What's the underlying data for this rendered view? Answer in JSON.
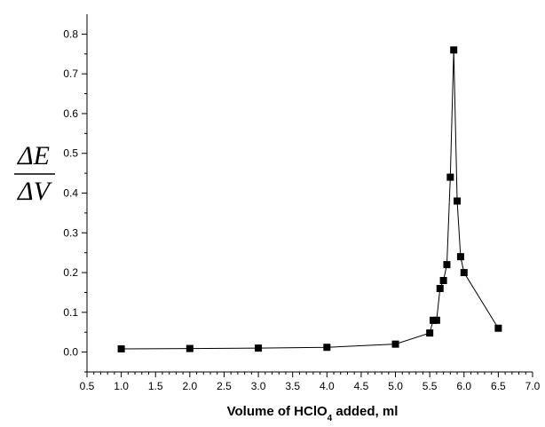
{
  "chart_data": {
    "type": "scatter",
    "title": "",
    "xlabel": {
      "prefix": "Volume of HClO",
      "subscript": "4",
      "suffix": " added, ml"
    },
    "ylabel": {
      "numerator": "ΔE",
      "denominator": "ΔV"
    },
    "xlim": [
      0.5,
      7.0
    ],
    "ylim": [
      -0.05,
      0.85
    ],
    "x_ticks": [
      "0.5",
      "1.0",
      "1.5",
      "2.0",
      "2.5",
      "3.0",
      "3.5",
      "4.0",
      "4.5",
      "5.0",
      "5.5",
      "6.0",
      "6.5",
      "7.0"
    ],
    "y_ticks": [
      "0.0",
      "0.1",
      "0.2",
      "0.3",
      "0.4",
      "0.5",
      "0.6",
      "0.7",
      "0.8"
    ],
    "grid": false,
    "marker": "square",
    "connected": true,
    "series": [
      {
        "x": [
          1.0,
          2.0,
          3.0,
          4.0,
          5.0,
          5.5,
          5.55,
          5.6,
          5.65,
          5.7,
          5.75,
          5.8,
          5.85,
          5.9,
          5.95,
          6.0,
          6.5
        ],
        "y": [
          0.008,
          0.009,
          0.01,
          0.012,
          0.02,
          0.048,
          0.08,
          0.08,
          0.16,
          0.18,
          0.22,
          0.44,
          0.76,
          0.38,
          0.24,
          0.2,
          0.06
        ]
      }
    ]
  }
}
